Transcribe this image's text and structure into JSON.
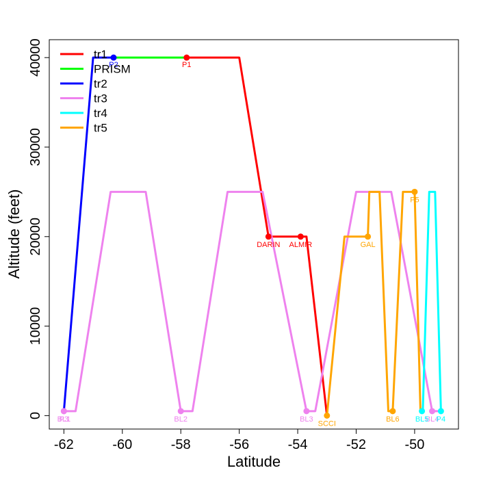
{
  "chart_data": {
    "type": "line",
    "title": "",
    "xlabel": "Latitude",
    "ylabel": "Altitude (feet)",
    "xlim": [
      -62.5,
      -48.5
    ],
    "ylim": [
      -1500,
      42000
    ],
    "x_ticks": [
      "-62",
      "-60",
      "-58",
      "-56",
      "-54",
      "-52",
      "-50"
    ],
    "y_ticks": [
      "0",
      "10000",
      "20000",
      "30000",
      "40000"
    ],
    "x_tick_values": [
      -62,
      -60,
      -58,
      -56,
      -54,
      -52,
      -50
    ],
    "y_tick_values": [
      0,
      10000,
      20000,
      30000,
      40000
    ],
    "legend_position": "top-left",
    "series": [
      {
        "name": "tr1",
        "color": "#ff0000",
        "x": [
          -57.8,
          -56.0,
          -55.0,
          -54.8,
          -53.9,
          -53.7,
          -53.0
        ],
        "y": [
          40000,
          40000,
          20000,
          20000,
          20000,
          20000,
          0
        ]
      },
      {
        "name": "PRISM",
        "color": "#00ff00",
        "x": [
          -60.3,
          -57.8
        ],
        "y": [
          40000,
          40000
        ]
      },
      {
        "name": "tr2",
        "color": "#0000ff",
        "x": [
          -62.0,
          -61.0,
          -60.3
        ],
        "y": [
          500,
          40000,
          40000
        ]
      },
      {
        "name": "tr3",
        "color": "#ee82ee",
        "x": [
          -62.0,
          -61.6,
          -60.4,
          -59.2,
          -58.0,
          -57.6,
          -56.4,
          -55.2,
          -53.7,
          -53.4,
          -52.0,
          -50.8,
          -49.4,
          -49.2
        ],
        "y": [
          500,
          500,
          25000,
          25000,
          500,
          500,
          25000,
          25000,
          500,
          500,
          25000,
          25000,
          500,
          500
        ]
      },
      {
        "name": "tr4",
        "color": "#00ffff",
        "x": [
          -49.75,
          -49.72,
          -49.5,
          -49.3,
          -49.1
        ],
        "y": [
          500,
          500,
          25000,
          25000,
          500
        ]
      },
      {
        "name": "tr5",
        "color": "#ffa500",
        "x": [
          -53.0,
          -52.4,
          -51.6,
          -51.55,
          -51.2,
          -50.9,
          -50.75,
          -50.4,
          -50.0,
          -49.8
        ],
        "y": [
          0,
          20000,
          20000,
          25000,
          25000,
          500,
          500,
          25000,
          25000,
          500
        ]
      }
    ],
    "points": [
      {
        "label": "P1",
        "x": -57.8,
        "y": 40000,
        "color": "#ff0000"
      },
      {
        "label": "P2",
        "x": -60.3,
        "y": 40000,
        "color": "#0000ff"
      },
      {
        "label": "DARIN",
        "x": -55.0,
        "y": 20000,
        "color": "#ff0000"
      },
      {
        "label": "ALMIR",
        "x": -53.9,
        "y": 20000,
        "color": "#ff0000"
      },
      {
        "label": "SCCI",
        "x": -53.0,
        "y": 0,
        "color": "#ffa500"
      },
      {
        "label": "GAL",
        "x": -51.6,
        "y": 20000,
        "color": "#ffa500"
      },
      {
        "label": "P5",
        "x": -50.0,
        "y": 25000,
        "color": "#ffa500"
      },
      {
        "label": "BL6",
        "x": -50.75,
        "y": 500,
        "color": "#ffa500"
      },
      {
        "label": "BL1",
        "x": -62.0,
        "y": 500,
        "color": "#ee82ee"
      },
      {
        "label": "P3",
        "x": -62.0,
        "y": 500,
        "color": "#ee82ee"
      },
      {
        "label": "BL2",
        "x": -58.0,
        "y": 500,
        "color": "#ee82ee"
      },
      {
        "label": "BL3",
        "x": -53.7,
        "y": 500,
        "color": "#ee82ee"
      },
      {
        "label": "BL4",
        "x": -49.4,
        "y": 500,
        "color": "#ee82ee"
      },
      {
        "label": "BL5",
        "x": -49.75,
        "y": 500,
        "color": "#00ffff"
      },
      {
        "label": "P4",
        "x": -49.1,
        "y": 500,
        "color": "#00ffff"
      }
    ]
  }
}
